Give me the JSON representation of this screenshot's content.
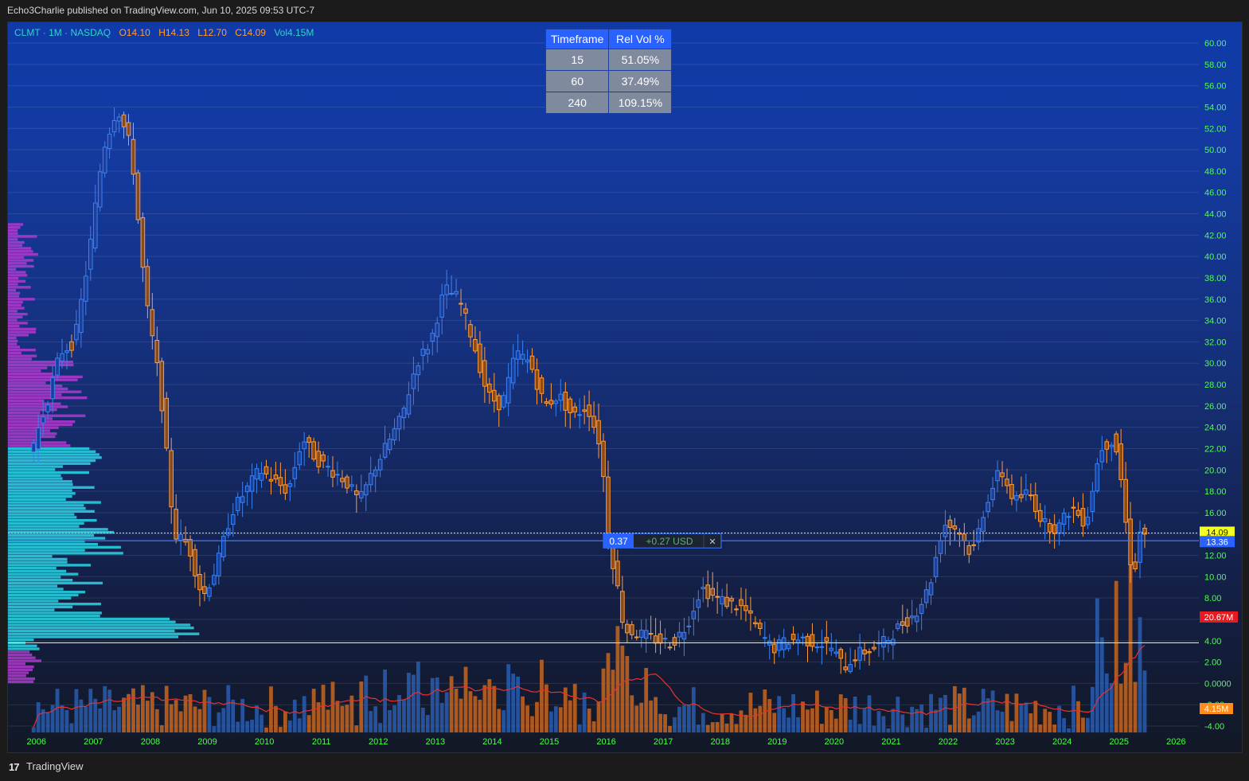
{
  "header": {
    "publisher_line": "Echo3Charlie published on TradingView.com, Jun 10, 2025 09:53 UTC-7"
  },
  "legend": {
    "symbol": "CLMT · 1M · NASDAQ",
    "open": "O14.10",
    "high": "H14.13",
    "low": "L12.70",
    "close": "C14.09",
    "volume": "Vol4.15M"
  },
  "rel_vol_table": {
    "headers": [
      "Timeframe",
      "Rel Vol %"
    ],
    "rows": [
      [
        "15",
        "51.05%"
      ],
      [
        "60",
        "37.49%"
      ],
      [
        "240",
        "109.15%"
      ]
    ]
  },
  "measure_tag": {
    "left": "0.37",
    "middle": "+0.27 USD",
    "close": "✕"
  },
  "price_badges": {
    "last": "14.09",
    "line": "13.36",
    "vol_ma": "20.67M",
    "vol": "4.15M"
  },
  "footer": {
    "logo": "17",
    "brand": "TradingView"
  },
  "colors": {
    "up": "#3b82f0",
    "down": "#ff9c39",
    "vol_up": "#2a5db0",
    "vol_down": "#c7651f",
    "profile_hi": "#29d6e6",
    "profile_lo": "#b23ad0",
    "ma": "#e8322e",
    "level": "#e6f23c",
    "axis_text": "#4cff4c"
  },
  "chart_data": {
    "type": "candlestick",
    "symbol": "CLMT",
    "timeframe": "1M",
    "exchange": "NASDAQ",
    "y_axis_ticks": [
      "60.00",
      "58.00",
      "56.00",
      "54.00",
      "52.00",
      "50.00",
      "48.00",
      "46.00",
      "44.00",
      "42.00",
      "40.00",
      "38.00",
      "36.00",
      "34.00",
      "32.00",
      "30.00",
      "28.00",
      "26.00",
      "24.00",
      "22.00",
      "20.00",
      "18.00",
      "16.00",
      "14.00",
      "12.00",
      "10.00",
      "8.00",
      "6.00",
      "4.00",
      "2.00",
      "0.0000",
      "-2.00",
      "-4.00"
    ],
    "x_axis_ticks": [
      "2006",
      "2007",
      "2008",
      "2009",
      "2010",
      "2011",
      "2012",
      "2013",
      "2014",
      "2015",
      "2016",
      "2017",
      "2018",
      "2019",
      "2020",
      "2021",
      "2022",
      "2023",
      "2024",
      "2025",
      "2026"
    ],
    "ylim": [
      -4.5,
      61
    ],
    "xlim": [
      2005.5,
      2026.4
    ],
    "yellow_level": 3.8,
    "blue_line": 13.36,
    "last_price": 14.09,
    "price_path": [
      [
        2006.0,
        22.0
      ],
      [
        2006.25,
        26.0
      ],
      [
        2006.5,
        31.0
      ],
      [
        2006.75,
        32.0
      ],
      [
        2007.0,
        40.0
      ],
      [
        2007.25,
        50.0
      ],
      [
        2007.5,
        54.0
      ],
      [
        2007.75,
        50.0
      ],
      [
        2008.0,
        36.0
      ],
      [
        2008.25,
        28.0
      ],
      [
        2008.5,
        14.0
      ],
      [
        2008.75,
        13.0
      ],
      [
        2009.0,
        8.0
      ],
      [
        2009.25,
        11.0
      ],
      [
        2009.5,
        16.0
      ],
      [
        2009.75,
        18.0
      ],
      [
        2010.0,
        20.0
      ],
      [
        2010.5,
        18.0
      ],
      [
        2010.75,
        23.0
      ],
      [
        2011.0,
        21.0
      ],
      [
        2011.5,
        19.0
      ],
      [
        2011.75,
        17.0
      ],
      [
        2012.0,
        20.0
      ],
      [
        2012.5,
        25.0
      ],
      [
        2012.75,
        30.0
      ],
      [
        2013.0,
        32.0
      ],
      [
        2013.25,
        37.0
      ],
      [
        2013.5,
        36.0
      ],
      [
        2013.75,
        32.0
      ],
      [
        2014.0,
        27.0
      ],
      [
        2014.25,
        26.0
      ],
      [
        2014.5,
        31.0
      ],
      [
        2014.75,
        30.0
      ],
      [
        2015.0,
        26.0
      ],
      [
        2015.25,
        27.0
      ],
      [
        2015.5,
        25.0
      ],
      [
        2015.75,
        26.0
      ],
      [
        2016.0,
        22.0
      ],
      [
        2016.1,
        14.0
      ],
      [
        2016.25,
        10.0
      ],
      [
        2016.4,
        5.0
      ],
      [
        2016.75,
        4.5
      ],
      [
        2017.0,
        4.0
      ],
      [
        2017.25,
        3.8
      ],
      [
        2017.5,
        5.5
      ],
      [
        2017.75,
        9.0
      ],
      [
        2018.0,
        8.0
      ],
      [
        2018.25,
        7.5
      ],
      [
        2018.5,
        7.0
      ],
      [
        2018.75,
        5.0
      ],
      [
        2019.0,
        3.2
      ],
      [
        2019.25,
        4.0
      ],
      [
        2019.5,
        4.2
      ],
      [
        2019.75,
        3.8
      ],
      [
        2020.0,
        3.6
      ],
      [
        2020.25,
        1.5
      ],
      [
        2020.5,
        2.8
      ],
      [
        2020.75,
        3.2
      ],
      [
        2021.0,
        4.0
      ],
      [
        2021.25,
        5.5
      ],
      [
        2021.5,
        6.5
      ],
      [
        2021.75,
        9.0
      ],
      [
        2022.0,
        15.0
      ],
      [
        2022.25,
        14.5
      ],
      [
        2022.5,
        12.0
      ],
      [
        2022.75,
        17.0
      ],
      [
        2023.0,
        20.0
      ],
      [
        2023.25,
        17.0
      ],
      [
        2023.5,
        18.0
      ],
      [
        2023.75,
        15.0
      ],
      [
        2024.0,
        14.5
      ],
      [
        2024.25,
        16.5
      ],
      [
        2024.5,
        15.0
      ],
      [
        2024.75,
        22.0
      ],
      [
        2025.0,
        23.0
      ],
      [
        2025.15,
        18.0
      ],
      [
        2025.25,
        12.0
      ],
      [
        2025.35,
        10.5
      ],
      [
        2025.45,
        14.09
      ]
    ],
    "volume_ma": {
      "series_label": "20.67M",
      "last_volume": "4.15M"
    }
  }
}
